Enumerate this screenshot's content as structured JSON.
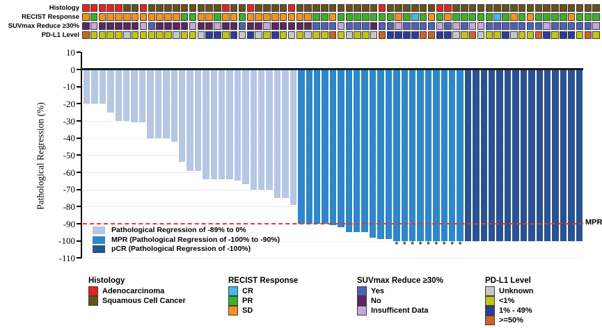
{
  "chart_data": {
    "type": "bar",
    "title": "",
    "ylabel": "Pathological Regression (%)",
    "ylim": [
      -110,
      10
    ],
    "yticks": [
      10,
      0,
      -10,
      -20,
      -30,
      -40,
      -50,
      -60,
      -70,
      -80,
      -90,
      -100,
      -110
    ],
    "grid": "horizontal-light",
    "n_patients": 63,
    "values": [
      -20,
      -20,
      -20,
      -25,
      -30,
      -30,
      -31,
      -31,
      -40,
      -40,
      -40,
      -42,
      -54,
      -59,
      -59,
      -64,
      -64,
      -64,
      -64,
      -65,
      -67,
      -70,
      -70,
      -70,
      -75,
      -75,
      -79,
      -90,
      -90,
      -90,
      -90,
      -91,
      -92,
      -95,
      -95,
      -95,
      -98,
      -99,
      -99,
      -100,
      -100,
      -100,
      -100,
      -100,
      -100,
      -100,
      -100,
      -100,
      -100,
      -100,
      -100,
      -100,
      -100,
      -100,
      -100,
      -100,
      -100,
      -100,
      -100,
      -100,
      -100,
      -100,
      -100
    ],
    "bar_classes": [
      "L",
      "L",
      "L",
      "L",
      "L",
      "L",
      "L",
      "L",
      "L",
      "L",
      "L",
      "L",
      "L",
      "L",
      "L",
      "L",
      "L",
      "L",
      "L",
      "L",
      "L",
      "L",
      "L",
      "L",
      "L",
      "L",
      "L",
      "M",
      "M",
      "M",
      "M",
      "M",
      "M",
      "M",
      "M",
      "M",
      "M",
      "M",
      "M",
      "M",
      "M",
      "M",
      "M",
      "M",
      "M",
      "M",
      "M",
      "M",
      "P",
      "P",
      "P",
      "P",
      "P",
      "P",
      "P",
      "P",
      "P",
      "P",
      "P",
      "P",
      "P",
      "P",
      "P"
    ],
    "asterisk_bars_1based": [
      40,
      41,
      42,
      43,
      44,
      45,
      46,
      47,
      48
    ],
    "asterisk_symbol": "*",
    "mpr_line": {
      "y": -90,
      "label": "MPR",
      "color": "#e8362c",
      "style": "dashed"
    },
    "bar_colors": {
      "L": "#b5c7e3",
      "M": "#2e87c8",
      "P": "#28538f"
    },
    "bar_legend": [
      {
        "class": "L",
        "label": "Pathological Regression of -89% to 0%",
        "color": "#b5c7e3"
      },
      {
        "class": "M",
        "label": "MPR (Pathological Regression of -100% to -90%)",
        "color": "#2e87c8"
      },
      {
        "class": "P",
        "label": "pCR (Pathological Regression of -100%)",
        "color": "#28538f"
      }
    ],
    "tracks": {
      "rows": [
        {
          "key": "histology",
          "label": "Histology"
        },
        {
          "key": "recist",
          "label": "RECIST Response"
        },
        {
          "key": "suvmax",
          "label": "SUVmax Reduce ≥30%"
        },
        {
          "key": "pdl1",
          "label": "PD-L1 Level"
        }
      ],
      "histology": [
        "A",
        "A",
        "A",
        "A",
        "A",
        "S",
        "S",
        "A",
        "S",
        "S",
        "S",
        "S",
        "S",
        "S",
        "S",
        "S",
        "S",
        "A",
        "S",
        "S",
        "A",
        "S",
        "S",
        "S",
        "S",
        "A",
        "S",
        "S",
        "S",
        "S",
        "S",
        "S",
        "S",
        "S",
        "S",
        "S",
        "A",
        "S",
        "S",
        "S",
        "S",
        "S",
        "S",
        "A",
        "A",
        "S",
        "S",
        "S",
        "S",
        "S",
        "S",
        "S",
        "S",
        "S",
        "S",
        "S",
        "S",
        "S",
        "S",
        "S",
        "S",
        "S",
        "S"
      ],
      "recist": [
        "SD",
        "PR",
        "SD",
        "SD",
        "SD",
        "SD",
        "SD",
        "SD",
        "SD",
        "SD",
        "SD",
        "SD",
        "PR",
        "PR",
        "SD",
        "SD",
        "PR",
        "SD",
        "SD",
        "PR",
        "SD",
        "SD",
        "SD",
        "SD",
        "SD",
        "SD",
        "SD",
        "SD",
        "PR",
        "PR",
        "SD",
        "PR",
        "PR",
        "PR",
        "PR",
        "PR",
        "PR",
        "PR",
        "SD",
        "PR",
        "CR",
        "PR",
        "SD",
        "PR",
        "SD",
        "PR",
        "PR",
        "PR",
        "PR",
        "PR",
        "CR",
        "PR",
        "SD",
        "PR",
        "SD",
        "PR",
        "PR",
        "PR",
        "PR",
        "SD",
        "PR",
        "PR",
        "PR"
      ],
      "suvmax": [
        "N",
        "I",
        "N",
        "N",
        "N",
        "N",
        "N",
        "I",
        "Y",
        "N",
        "N",
        "N",
        "N",
        "I",
        "N",
        "N",
        "I",
        "N",
        "N",
        "Y",
        "N",
        "N",
        "I",
        "N",
        "N",
        "N",
        "N",
        "N",
        "Y",
        "Y",
        "Y",
        "I",
        "Y",
        "Y",
        "Y",
        "N",
        "Y",
        "Y",
        "I",
        "Y",
        "Y",
        "Y",
        "Y",
        "I",
        "Y",
        "I",
        "Y",
        "I",
        "I",
        "Y",
        "Y",
        "Y",
        "Y",
        "Y",
        "Y",
        "Y",
        "I",
        "Y",
        "Y",
        "Y",
        "Y",
        "Y",
        "I"
      ],
      "pdl1": [
        ">=50",
        "<1",
        "<1",
        "<1",
        "<1",
        "U",
        "<1",
        "<1",
        "<1",
        "<1",
        "<1",
        "U",
        "<1",
        "<1",
        "U",
        "1-49",
        "1-49",
        "<1",
        "1-49",
        "U",
        "1-49",
        "U",
        "<1",
        "1-49",
        "<1",
        "U",
        "<1",
        "U",
        "<1",
        "<1",
        ">=50",
        "<1",
        "U",
        "<1",
        "<1",
        "U",
        ">=50",
        "1-49",
        "1-49",
        "1-49",
        "1-49",
        ">=50",
        ">=50",
        "1-49",
        "1-49",
        "U",
        "<1",
        ">=50",
        "U",
        "<1",
        "<1",
        "1-49",
        "U",
        "<1",
        "<1",
        ">=50",
        "1-49",
        "<1",
        "1-49",
        "1-49",
        "<1",
        ">=50",
        "<1"
      ],
      "colors": {
        "A": "#e8231e",
        "S": "#6a5019",
        "SD": "#f5921e",
        "PR": "#3bb226",
        "CR": "#41bde8",
        "Y": "#4c62ba",
        "N": "#5c2663",
        "I": "#c4aad8",
        "U": "#c7c7c7",
        "<1": "#c2c513",
        "1-49": "#2c3c9c",
        ">=50": "#cf6428"
      }
    },
    "legend_groups": [
      {
        "title": "Histology",
        "items": [
          {
            "key": "A",
            "label": "Adenocarcinoma"
          },
          {
            "key": "S",
            "label": "Squamous Cell Cancer"
          }
        ]
      },
      {
        "title": "RECIST Response",
        "items": [
          {
            "key": "CR",
            "label": "CR"
          },
          {
            "key": "PR",
            "label": "PR"
          },
          {
            "key": "SD",
            "label": "SD"
          }
        ]
      },
      {
        "title": "SUVmax Reduce ≥30%",
        "items": [
          {
            "key": "Y",
            "label": "Yes"
          },
          {
            "key": "N",
            "label": "No"
          },
          {
            "key": "I",
            "label": "Insufficent Data"
          }
        ]
      },
      {
        "title": "PD-L1 Level",
        "items": [
          {
            "key": "U",
            "label": "Unknown"
          },
          {
            "key": "<1",
            "label": "<1%"
          },
          {
            "key": "1-49",
            "label": "1% - 49%"
          },
          {
            "key": ">=50",
            "label": ">=50%"
          }
        ]
      }
    ]
  }
}
